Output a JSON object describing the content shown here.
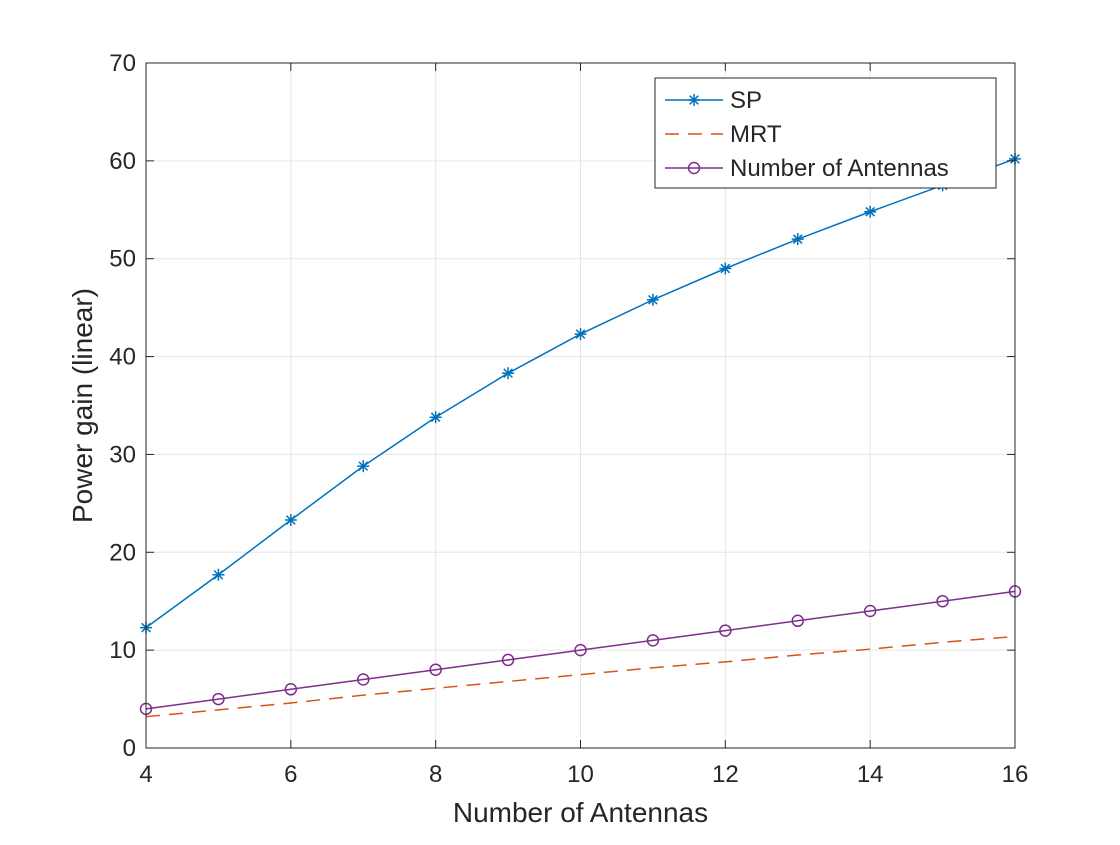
{
  "chart_data": {
    "type": "line",
    "title": "",
    "xlabel": "Number of Antennas",
    "ylabel": "Power gain (linear)",
    "xlim": [
      4,
      16
    ],
    "ylim": [
      0,
      70
    ],
    "xticks": [
      4,
      6,
      8,
      10,
      12,
      14,
      16
    ],
    "yticks": [
      0,
      10,
      20,
      30,
      40,
      50,
      60,
      70
    ],
    "grid": true,
    "legend_position": "top-right",
    "x": [
      4,
      5,
      6,
      7,
      8,
      9,
      10,
      11,
      12,
      13,
      14,
      15,
      16
    ],
    "series": [
      {
        "name": "SP",
        "color": "#0072BD",
        "line_style": "solid",
        "marker": "asterisk",
        "values": [
          12.3,
          17.7,
          23.3,
          28.8,
          33.8,
          38.3,
          42.3,
          45.8,
          49.0,
          52.0,
          54.8,
          57.5,
          60.2
        ]
      },
      {
        "name": "MRT",
        "color": "#D95319",
        "line_style": "dashed",
        "marker": "none",
        "values": [
          3.2,
          3.9,
          4.6,
          5.4,
          6.1,
          6.8,
          7.5,
          8.2,
          8.8,
          9.5,
          10.1,
          10.8,
          11.4
        ]
      },
      {
        "name": "Number of Antennas",
        "color": "#7E2F8E",
        "line_style": "solid",
        "marker": "circle",
        "values": [
          4,
          5,
          6,
          7,
          8,
          9,
          10,
          11,
          12,
          13,
          14,
          15,
          16
        ]
      }
    ]
  }
}
